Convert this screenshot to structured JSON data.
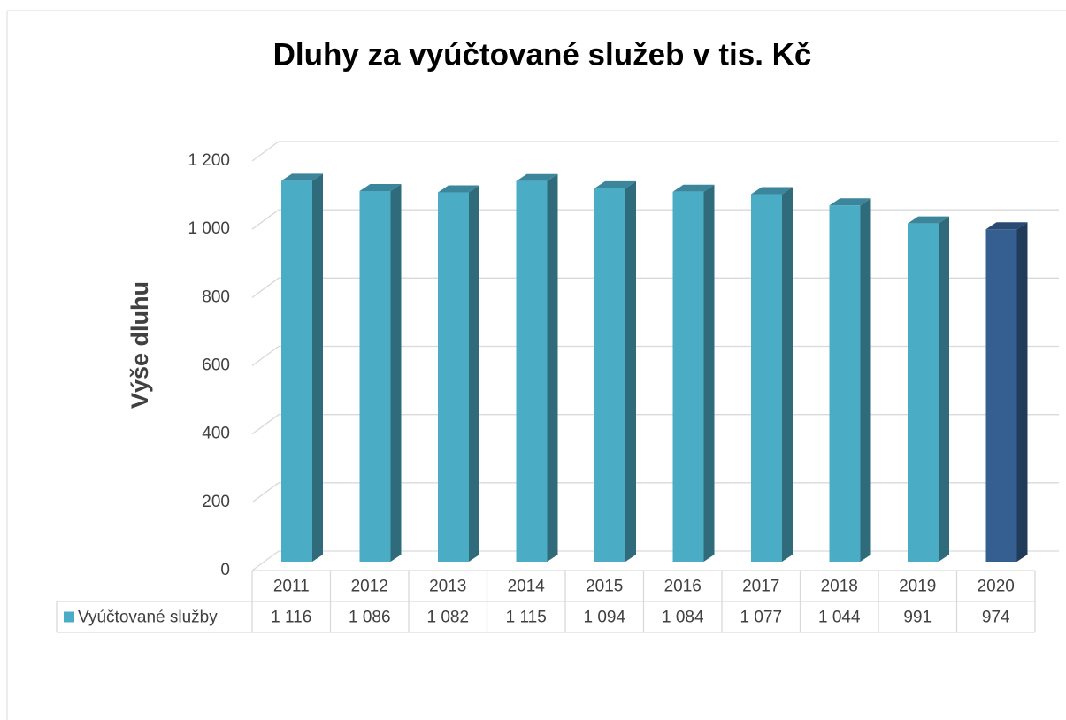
{
  "chart_data": {
    "type": "bar3d",
    "title": "Dluhy za vyúčtované služeb v tis. Kč",
    "y_label": "Výše dluhu",
    "categories": [
      "2011",
      "2012",
      "2013",
      "2014",
      "2015",
      "2016",
      "2017",
      "2018",
      "2019",
      "2020"
    ],
    "series": [
      {
        "name": "Vyúčtované služby",
        "color": "#4bacc6",
        "values": [
          1116,
          1086,
          1082,
          1115,
          1094,
          1084,
          1077,
          1044,
          991,
          974
        ],
        "value_labels": [
          "1 116",
          "1 086",
          "1 082",
          "1 115",
          "1 094",
          "1 084",
          "1 077",
          "1 044",
          "991",
          "974"
        ],
        "colors": [
          "#4bacc6",
          "#4bacc6",
          "#4bacc6",
          "#4bacc6",
          "#4bacc6",
          "#4bacc6",
          "#4bacc6",
          "#4bacc6",
          "#4bacc6",
          "#365f91"
        ]
      }
    ],
    "ylim": [
      0,
      1200
    ],
    "yticks": [
      0,
      200,
      400,
      600,
      800,
      {
        "value": 1000,
        "label": "1 000"
      },
      {
        "value": 1200,
        "label": "1 200"
      }
    ],
    "grid": true,
    "data_table": true
  }
}
